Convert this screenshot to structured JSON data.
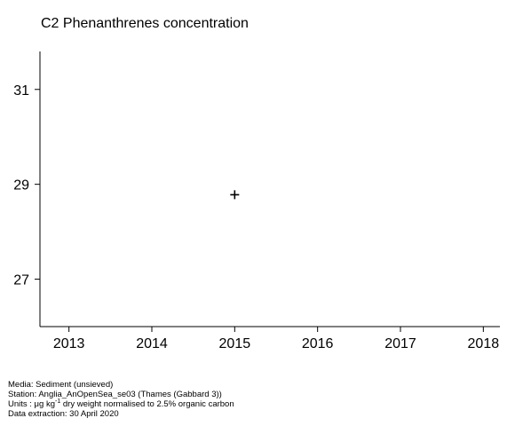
{
  "chart_data": {
    "type": "scatter",
    "title": "C2 Phenanthrenes concentration",
    "xlabel": "",
    "ylabel": "",
    "x_ticks": [
      "2013",
      "2014",
      "2015",
      "2016",
      "2017",
      "2018"
    ],
    "y_ticks": [
      "27",
      "29",
      "31"
    ],
    "xlim": [
      2012.65,
      2018.2
    ],
    "ylim": [
      26.0,
      31.8
    ],
    "marker": "+",
    "grid": false,
    "points": [
      {
        "x": 2015,
        "y": 28.78
      }
    ]
  },
  "footer": {
    "media": "Media: Sediment (unsieved)",
    "station": "Station: Anglia_AnOpenSea_se03 (Thames (Gabbard 3))",
    "units_prefix": "Units : μg kg",
    "units_sup": "-1",
    "units_suffix": " dry weight normalised to 2.5% organic carbon",
    "extraction": "Data extraction: 30 April 2020"
  }
}
